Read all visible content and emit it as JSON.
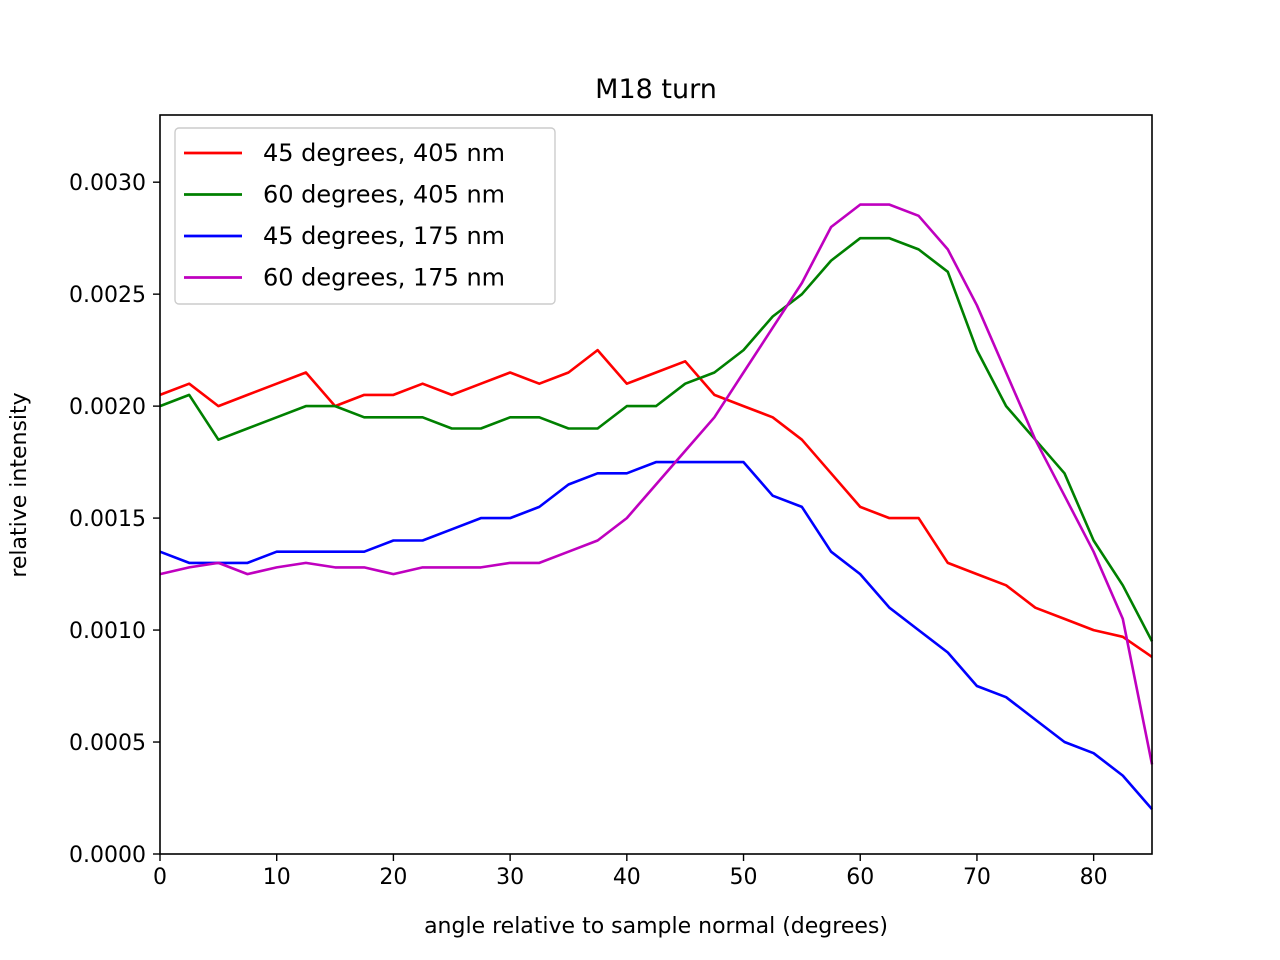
{
  "chart_data": {
    "type": "line",
    "title": "M18 turn",
    "xlabel": "angle relative to sample normal (degrees)",
    "ylabel": "relative intensity",
    "xlim": [
      0,
      85
    ],
    "ylim": [
      0,
      0.0033
    ],
    "xticks": [
      0,
      10,
      20,
      30,
      40,
      50,
      60,
      70,
      80
    ],
    "xtick_labels": [
      "0",
      "10",
      "20",
      "30",
      "40",
      "50",
      "60",
      "70",
      "80"
    ],
    "yticks": [
      0,
      0.0005,
      0.001,
      0.0015,
      0.002,
      0.0025,
      0.003
    ],
    "ytick_labels": [
      "0.0000",
      "0.0005",
      "0.0010",
      "0.0015",
      "0.0020",
      "0.0025",
      "0.0030"
    ],
    "grid": false,
    "legend_position": "upper-left",
    "x": [
      0,
      2.5,
      5,
      7.5,
      10,
      12.5,
      15,
      17.5,
      20,
      22.5,
      25,
      27.5,
      30,
      32.5,
      35,
      37.5,
      40,
      42.5,
      45,
      47.5,
      50,
      52.5,
      55,
      57.5,
      60,
      62.5,
      65,
      67.5,
      70,
      72.5,
      75,
      77.5,
      80,
      82.5,
      85
    ],
    "series": [
      {
        "name": "45 degrees, 405 nm",
        "color": "#ff0000",
        "values": [
          0.00205,
          0.0021,
          0.002,
          0.00205,
          0.0021,
          0.00215,
          0.002,
          0.00205,
          0.00205,
          0.0021,
          0.00205,
          0.0021,
          0.00215,
          0.0021,
          0.00215,
          0.00225,
          0.0021,
          0.00215,
          0.0022,
          0.00205,
          0.002,
          0.00195,
          0.00185,
          0.0017,
          0.00155,
          0.0015,
          0.0015,
          0.0013,
          0.00125,
          0.0012,
          0.0011,
          0.00105,
          0.001,
          0.00097,
          0.00088
        ]
      },
      {
        "name": "60 degrees, 405 nm",
        "color": "#008000",
        "values": [
          0.002,
          0.00205,
          0.00185,
          0.0019,
          0.00195,
          0.002,
          0.002,
          0.00195,
          0.00195,
          0.00195,
          0.0019,
          0.0019,
          0.00195,
          0.00195,
          0.0019,
          0.0019,
          0.002,
          0.002,
          0.0021,
          0.00215,
          0.00225,
          0.0024,
          0.0025,
          0.00265,
          0.00275,
          0.00275,
          0.0027,
          0.0026,
          0.00225,
          0.002,
          0.00185,
          0.0017,
          0.0014,
          0.0012,
          0.00095
        ]
      },
      {
        "name": "45 degrees, 175 nm",
        "color": "#0000ff",
        "values": [
          0.00135,
          0.0013,
          0.0013,
          0.0013,
          0.00135,
          0.00135,
          0.00135,
          0.00135,
          0.0014,
          0.0014,
          0.00145,
          0.0015,
          0.0015,
          0.00155,
          0.00165,
          0.0017,
          0.0017,
          0.00175,
          0.00175,
          0.00175,
          0.00175,
          0.0016,
          0.00155,
          0.00135,
          0.00125,
          0.0011,
          0.001,
          0.0009,
          0.00075,
          0.0007,
          0.0006,
          0.0005,
          0.00045,
          0.00035,
          0.0002
        ]
      },
      {
        "name": "60 degrees, 175 nm",
        "color": "#bf00bf",
        "values": [
          0.00125,
          0.00128,
          0.0013,
          0.00125,
          0.00128,
          0.0013,
          0.00128,
          0.00128,
          0.00125,
          0.00128,
          0.00128,
          0.00128,
          0.0013,
          0.0013,
          0.00135,
          0.0014,
          0.0015,
          0.00165,
          0.0018,
          0.00195,
          0.00215,
          0.00235,
          0.00255,
          0.0028,
          0.0029,
          0.0029,
          0.00285,
          0.0027,
          0.00245,
          0.00215,
          0.00185,
          0.0016,
          0.00135,
          0.00105,
          0.0004
        ]
      }
    ]
  }
}
